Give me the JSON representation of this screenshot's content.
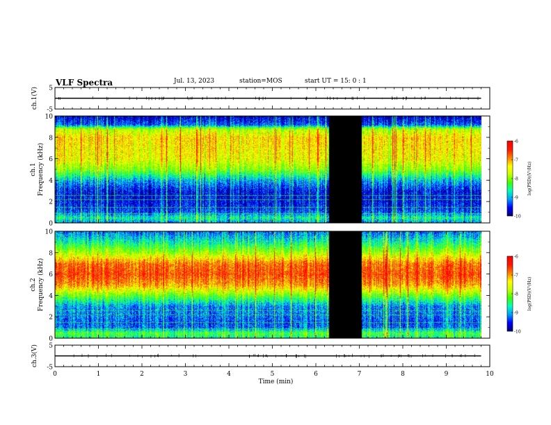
{
  "header": {
    "title": "VLF Spectra",
    "date": "Jul. 13, 2023",
    "station": "station=MOS",
    "start_ut": "start UT = 15: 0 : 1"
  },
  "colors": {
    "colormap": [
      "#00007a",
      "#0000ff",
      "#00a0ff",
      "#00ffc0",
      "#40ff00",
      "#c8ff00",
      "#ffff00",
      "#ff8000",
      "#ff1800",
      "#ff0000"
    ],
    "gap": "#000000"
  },
  "chart_data": [
    {
      "id": "ch1-waveform",
      "type": "line",
      "ylabel": "ch.1(V)",
      "ylim": [
        -5,
        5
      ],
      "yticks": [
        "5",
        "-5"
      ],
      "xlim": [
        0,
        10
      ],
      "series": [
        {
          "x": [
            0,
            9.8
          ],
          "values": [
            0,
            0
          ]
        }
      ]
    },
    {
      "id": "ch1-spectrogram",
      "type": "heatmap",
      "ylabel": "ch.1\nFrequency (kHz)",
      "ylim": [
        0,
        10
      ],
      "yticks": [
        "0",
        "2",
        "4",
        "6",
        "8",
        "10"
      ],
      "xlim": [
        0,
        10
      ],
      "data_xrange": [
        0,
        9.8
      ],
      "gap_x": [
        6.3,
        7.05
      ],
      "colorbar": {
        "label": "log(PSD)(V²/Hz)",
        "range": [
          -10,
          -6
        ],
        "ticks": [
          "-6",
          "-7",
          "-8",
          "-9",
          "-10"
        ]
      },
      "band_profile": [
        {
          "f": 0.0,
          "v": -9.2
        },
        {
          "f": 0.5,
          "v": -8.6
        },
        {
          "f": 1.0,
          "v": -9.3
        },
        {
          "f": 1.5,
          "v": -9.5
        },
        {
          "f": 2.0,
          "v": -9.6
        },
        {
          "f": 3.0,
          "v": -9.6
        },
        {
          "f": 4.0,
          "v": -9.0
        },
        {
          "f": 5.0,
          "v": -8.0
        },
        {
          "f": 6.0,
          "v": -7.5
        },
        {
          "f": 7.0,
          "v": -7.4
        },
        {
          "f": 8.0,
          "v": -7.3
        },
        {
          "f": 8.8,
          "v": -7.8
        },
        {
          "f": 9.2,
          "v": -9.3
        },
        {
          "f": 10.0,
          "v": -9.8
        }
      ]
    },
    {
      "id": "ch2-spectrogram",
      "type": "heatmap",
      "ylabel": "ch.2\nFrequency (kHz)",
      "ylim": [
        0,
        10
      ],
      "yticks": [
        "0",
        "2",
        "4",
        "6",
        "8",
        "10"
      ],
      "xlim": [
        0,
        10
      ],
      "data_xrange": [
        0,
        9.8
      ],
      "gap_x": [
        6.3,
        7.05
      ],
      "colorbar": {
        "label": "log(PSD)(V²/Hz)",
        "range": [
          -10,
          -6
        ],
        "ticks": [
          "-6",
          "-7",
          "-8",
          "-9",
          "-10"
        ]
      },
      "band_profile": [
        {
          "f": 0.0,
          "v": -8.6
        },
        {
          "f": 0.5,
          "v": -8.2
        },
        {
          "f": 1.0,
          "v": -9.2
        },
        {
          "f": 1.5,
          "v": -9.3
        },
        {
          "f": 2.0,
          "v": -9.2
        },
        {
          "f": 3.0,
          "v": -9.1
        },
        {
          "f": 4.0,
          "v": -8.1
        },
        {
          "f": 5.0,
          "v": -7.0
        },
        {
          "f": 6.0,
          "v": -6.6
        },
        {
          "f": 7.0,
          "v": -6.8
        },
        {
          "f": 8.0,
          "v": -7.8
        },
        {
          "f": 9.0,
          "v": -8.6
        },
        {
          "f": 10.0,
          "v": -9.2
        }
      ]
    },
    {
      "id": "ch3-waveform",
      "type": "line",
      "ylabel": "ch.3(V)",
      "ylim": [
        -5,
        5
      ],
      "yticks": [
        "5",
        "-5"
      ],
      "xlim": [
        0,
        10
      ],
      "xlabel": "Time (min)",
      "xticks": [
        "0",
        "1",
        "2",
        "3",
        "4",
        "5",
        "6",
        "7",
        "8",
        "9",
        "10"
      ],
      "series": [
        {
          "x": [
            0,
            9.8
          ],
          "values": [
            0,
            0
          ]
        }
      ]
    }
  ]
}
